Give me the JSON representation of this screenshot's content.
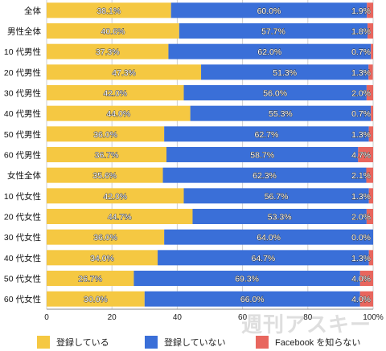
{
  "chart_data": {
    "type": "bar",
    "orientation": "horizontal",
    "stacked": true,
    "categories": [
      "全体",
      "男性全体",
      "10 代男性",
      "20 代男性",
      "30 代男性",
      "40 代男性",
      "50 代男性",
      "60 代男性",
      "女性全体",
      "10 代女性",
      "20 代女性",
      "30 代女性",
      "40 代女性",
      "50 代女性",
      "60 代女性"
    ],
    "series": [
      {
        "name": "登録している",
        "color": "#F5C842",
        "values": [
          38.1,
          40.6,
          37.3,
          47.3,
          42.0,
          44.0,
          36.0,
          36.7,
          35.6,
          42.0,
          44.7,
          36.0,
          34.0,
          26.7,
          30.0
        ],
        "labels": [
          "38.1%",
          "40.6%",
          "37.3%",
          "47.3%",
          "42.0%",
          "44.0%",
          "36.0%",
          "36.7%",
          "35.6%",
          "42.0%",
          "44.7%",
          "36.0%",
          "34.0%",
          "26.7%",
          "30.0%"
        ]
      },
      {
        "name": "登録していない",
        "color": "#3A6FD8",
        "values": [
          60.0,
          57.7,
          62.0,
          51.3,
          56.0,
          55.3,
          62.7,
          58.7,
          62.3,
          56.7,
          53.3,
          64.0,
          64.7,
          69.3,
          66.0
        ],
        "labels": [
          "60.0%",
          "57.7%",
          "62.0%",
          "51.3%",
          "56.0%",
          "55.3%",
          "62.7%",
          "58.7%",
          "62.3%",
          "56.7%",
          "53.3%",
          "64.0%",
          "64.7%",
          "69.3%",
          "66.0%"
        ]
      },
      {
        "name": "Facebook を知らない",
        "color": "#E8665E",
        "values": [
          1.9,
          1.8,
          0.7,
          1.3,
          2.0,
          0.7,
          1.3,
          4.7,
          2.1,
          1.3,
          2.0,
          0.0,
          1.3,
          4.0,
          4.0
        ],
        "labels": [
          "1.9%",
          "1.8%",
          "0.7%",
          "1.3%",
          "2.0%",
          "0.7%",
          "1.3%",
          "4.7%",
          "2.1%",
          "1.3%",
          "2.0%",
          "0.0%",
          "1.3%",
          "4.0%",
          "4.0%"
        ]
      }
    ],
    "xlim": [
      0,
      100
    ],
    "xticks": [
      "0",
      "20",
      "40",
      "60",
      "80",
      "100%"
    ],
    "grid": true,
    "legend_position": "bottom"
  },
  "watermark": "週刊アスキー"
}
